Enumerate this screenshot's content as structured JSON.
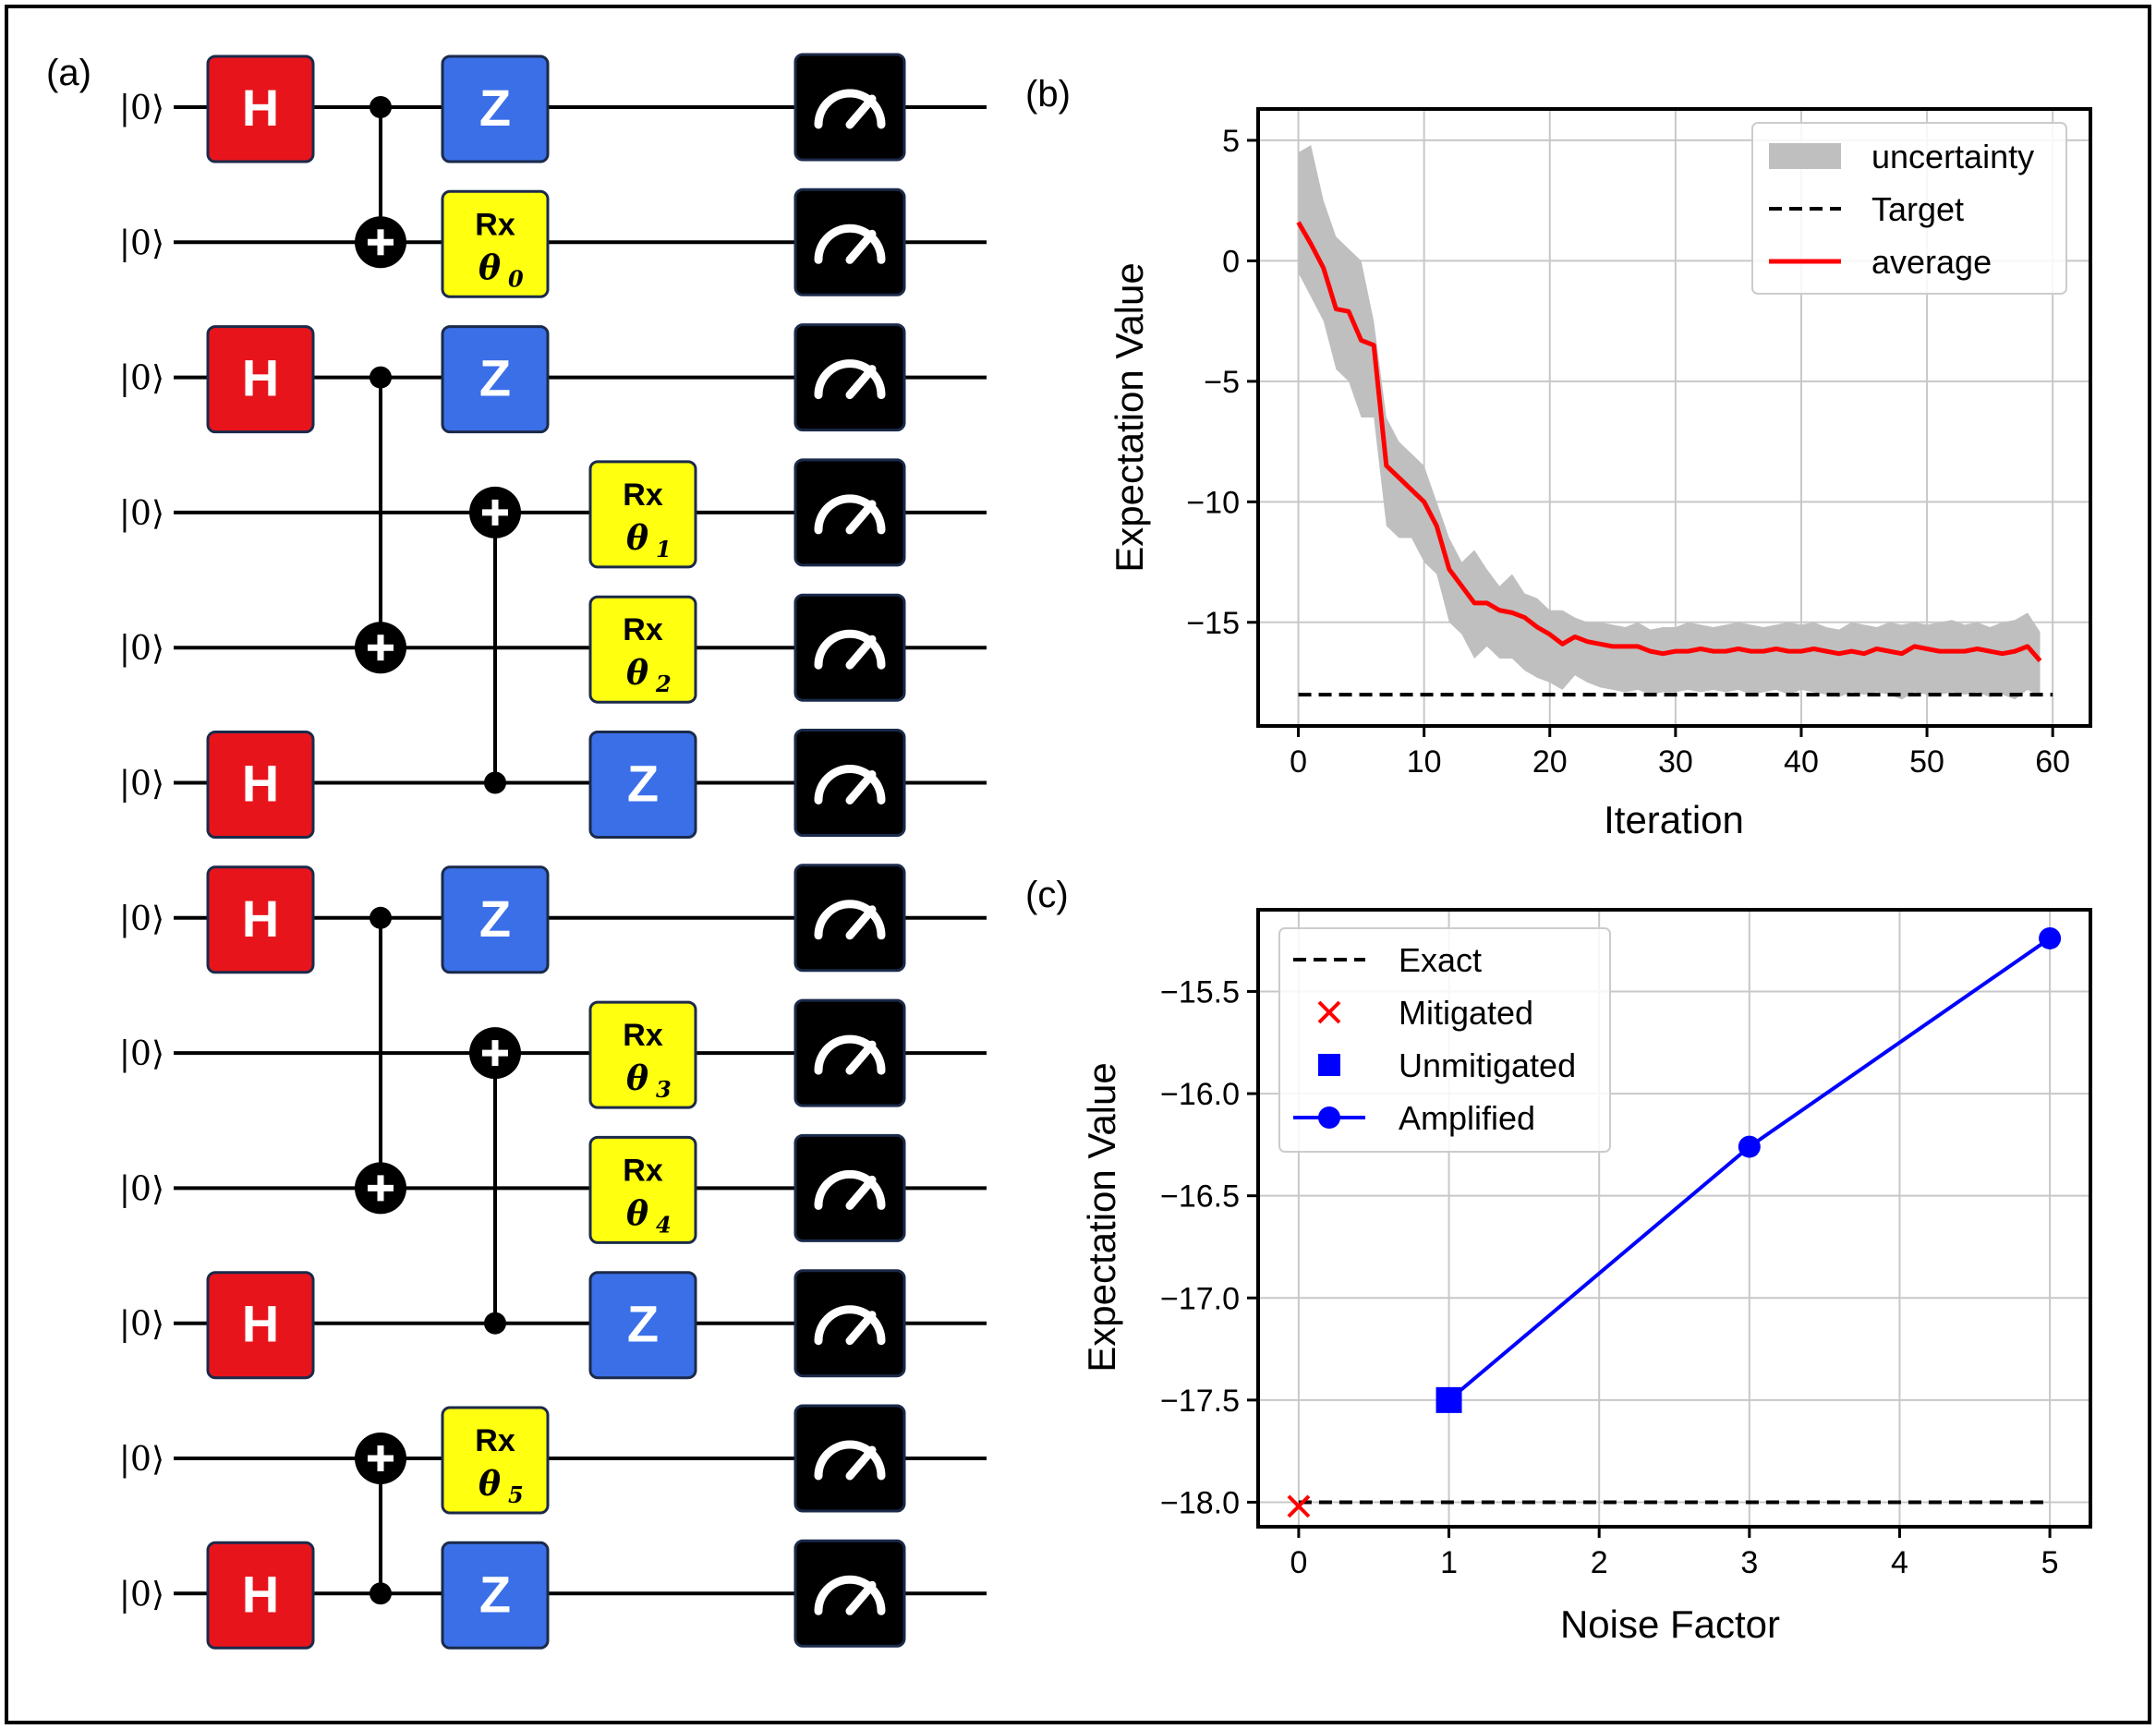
{
  "panels": {
    "a": "(a)",
    "b": "(b)",
    "c": "(c)"
  },
  "circuit": {
    "ket_label": "|0⟩",
    "colors": {
      "H": "#e8141c",
      "Z": "#3a6fe8",
      "Rx": "#ffff10",
      "measure": "#000000",
      "gate_border": "#1b2a4a"
    },
    "gate_text": {
      "H": "H",
      "Z": "Z",
      "Rx": "Rx"
    },
    "thetas": [
      {
        "sym": "θ",
        "sub": "0"
      },
      {
        "sym": "θ",
        "sub": "1"
      },
      {
        "sym": "θ",
        "sub": "2"
      },
      {
        "sym": "θ",
        "sub": "3"
      },
      {
        "sym": "θ",
        "sub": "4"
      },
      {
        "sym": "θ",
        "sub": "5"
      }
    ],
    "num_qubits": 12,
    "gates": [
      {
        "type": "H",
        "q": 0,
        "col": "h"
      },
      {
        "type": "Z",
        "q": 0,
        "col": "z1"
      },
      {
        "type": "Rx",
        "q": 1,
        "col": "z1",
        "theta": 0
      },
      {
        "type": "H",
        "q": 2,
        "col": "h"
      },
      {
        "type": "Z",
        "q": 2,
        "col": "z1"
      },
      {
        "type": "Rx",
        "q": 3,
        "col": "z2",
        "theta": 1
      },
      {
        "type": "Rx",
        "q": 4,
        "col": "z2",
        "theta": 2
      },
      {
        "type": "H",
        "q": 5,
        "col": "h"
      },
      {
        "type": "Z",
        "q": 5,
        "col": "z2"
      },
      {
        "type": "H",
        "q": 6,
        "col": "h"
      },
      {
        "type": "Z",
        "q": 6,
        "col": "z1"
      },
      {
        "type": "Rx",
        "q": 7,
        "col": "z2",
        "theta": 3
      },
      {
        "type": "Rx",
        "q": 8,
        "col": "z2",
        "theta": 4
      },
      {
        "type": "H",
        "q": 9,
        "col": "h"
      },
      {
        "type": "Z",
        "q": 9,
        "col": "z2"
      },
      {
        "type": "Rx",
        "q": 10,
        "col": "z1",
        "theta": 5
      },
      {
        "type": "H",
        "q": 11,
        "col": "h"
      },
      {
        "type": "Z",
        "q": 11,
        "col": "z1"
      }
    ],
    "cnots": [
      {
        "control": 0,
        "target": 1,
        "col": "c1"
      },
      {
        "control": 2,
        "target": 4,
        "col": "c1"
      },
      {
        "control": 5,
        "target": 3,
        "col": "c2"
      },
      {
        "control": 6,
        "target": 8,
        "col": "c1"
      },
      {
        "control": 9,
        "target": 7,
        "col": "c2"
      },
      {
        "control": 11,
        "target": 10,
        "col": "c1"
      }
    ]
  },
  "chart_data": [
    {
      "panel": "b",
      "type": "line",
      "xlabel": "Iteration",
      "ylabel": "Expectation Value",
      "xlim": [
        -3.2,
        63
      ],
      "ylim": [
        -19.3,
        6.3
      ],
      "xticks": [
        0,
        10,
        20,
        30,
        40,
        50,
        60
      ],
      "yticks": [
        5,
        0,
        -5,
        -10,
        -15
      ],
      "ytick_labels": [
        "5",
        "0",
        "−5",
        "−10",
        "−15"
      ],
      "grid": true,
      "legend_position": "top-right",
      "colors": {
        "average": "#ff0000",
        "band": "#bfbfbf",
        "target": "#000000"
      },
      "legend": [
        "uncertainty",
        "Target",
        "average"
      ],
      "target": -18,
      "x": [
        0,
        1,
        2,
        3,
        4,
        5,
        6,
        7,
        8,
        9,
        10,
        11,
        12,
        13,
        14,
        15,
        16,
        17,
        18,
        19,
        20,
        21,
        22,
        23,
        24,
        25,
        26,
        27,
        28,
        29,
        30,
        31,
        32,
        33,
        34,
        35,
        36,
        37,
        38,
        39,
        40,
        41,
        42,
        43,
        44,
        45,
        46,
        47,
        48,
        49,
        50,
        51,
        52,
        53,
        54,
        55,
        56,
        57,
        58,
        59
      ],
      "average": [
        1.6,
        0.7,
        -0.3,
        -2.0,
        -2.1,
        -3.3,
        -3.5,
        -8.5,
        -9.0,
        -9.5,
        -10.0,
        -11.0,
        -12.8,
        -13.5,
        -14.2,
        -14.2,
        -14.5,
        -14.6,
        -14.8,
        -15.2,
        -15.5,
        -15.9,
        -15.6,
        -15.8,
        -15.9,
        -16.0,
        -16.0,
        -16.0,
        -16.2,
        -16.3,
        -16.2,
        -16.2,
        -16.1,
        -16.2,
        -16.2,
        -16.1,
        -16.2,
        -16.2,
        -16.1,
        -16.2,
        -16.2,
        -16.1,
        -16.2,
        -16.3,
        -16.2,
        -16.3,
        -16.1,
        -16.2,
        -16.3,
        -16.0,
        -16.1,
        -16.2,
        -16.2,
        -16.2,
        -16.1,
        -16.2,
        -16.3,
        -16.2,
        -16.0,
        -16.6
      ],
      "upper": [
        4.5,
        4.8,
        2.5,
        1.0,
        0.5,
        0.0,
        -2.5,
        -6.5,
        -7.5,
        -8.0,
        -8.5,
        -10.0,
        -11.5,
        -12.5,
        -12.0,
        -12.8,
        -13.5,
        -13.0,
        -13.8,
        -14.0,
        -14.5,
        -14.5,
        -14.8,
        -15.0,
        -15.0,
        -15.1,
        -15.2,
        -15.0,
        -15.3,
        -15.2,
        -15.2,
        -15.0,
        -15.1,
        -15.2,
        -15.1,
        -15.0,
        -15.1,
        -15.2,
        -15.1,
        -15.0,
        -15.1,
        -15.0,
        -15.2,
        -15.3,
        -15.0,
        -15.1,
        -15.2,
        -15.0,
        -15.1,
        -15.0,
        -15.1,
        -15.0,
        -14.9,
        -15.1,
        -15.0,
        -15.2,
        -15.0,
        -14.9,
        -14.6,
        -15.4
      ],
      "lower": [
        -0.5,
        -1.5,
        -2.5,
        -4.5,
        -5.0,
        -6.5,
        -6.5,
        -11.0,
        -11.5,
        -11.5,
        -12.5,
        -13.0,
        -15.0,
        -15.5,
        -16.5,
        -16.0,
        -16.5,
        -16.5,
        -17.0,
        -17.3,
        -17.5,
        -17.8,
        -17.2,
        -17.5,
        -17.7,
        -17.8,
        -17.9,
        -17.8,
        -18.0,
        -17.9,
        -17.9,
        -17.8,
        -17.9,
        -17.8,
        -17.9,
        -17.8,
        -18.0,
        -17.9,
        -17.8,
        -18.0,
        -17.8,
        -17.9,
        -18.0,
        -18.1,
        -17.9,
        -18.0,
        -17.9,
        -18.0,
        -18.2,
        -17.9,
        -18.0,
        -18.0,
        -17.9,
        -18.0,
        -17.9,
        -18.1,
        -18.0,
        -18.2,
        -17.8,
        -18.1
      ]
    },
    {
      "panel": "c",
      "type": "scatter",
      "xlabel": "Noise Factor",
      "ylabel": "Expectation Value",
      "xlim": [
        -0.27,
        5.27
      ],
      "ylim": [
        -18.12,
        -15.1
      ],
      "xticks": [
        0,
        1,
        2,
        3,
        4,
        5
      ],
      "yticks": [
        -15.5,
        -16.0,
        -16.5,
        -17.0,
        -17.5,
        -18.0
      ],
      "ytick_labels": [
        "−15.5",
        "−16.0",
        "−16.5",
        "−17.0",
        "−17.5",
        "−18.0"
      ],
      "grid": true,
      "legend_position": "top-left",
      "legend": [
        "Exact",
        "Mitigated",
        "Unmitigated",
        "Amplified"
      ],
      "colors": {
        "exact": "#000000",
        "mitigated": "#ff0000",
        "unmitigated": "#0000ff",
        "amplified": "#0000ff"
      },
      "exact": -18.0,
      "mitigated": {
        "x": 0,
        "y": -18.02
      },
      "unmitigated": {
        "x": 1,
        "y": -17.5
      },
      "amplified": {
        "x": [
          1,
          3,
          5
        ],
        "y": [
          -17.5,
          -16.26,
          -15.24
        ]
      }
    }
  ]
}
